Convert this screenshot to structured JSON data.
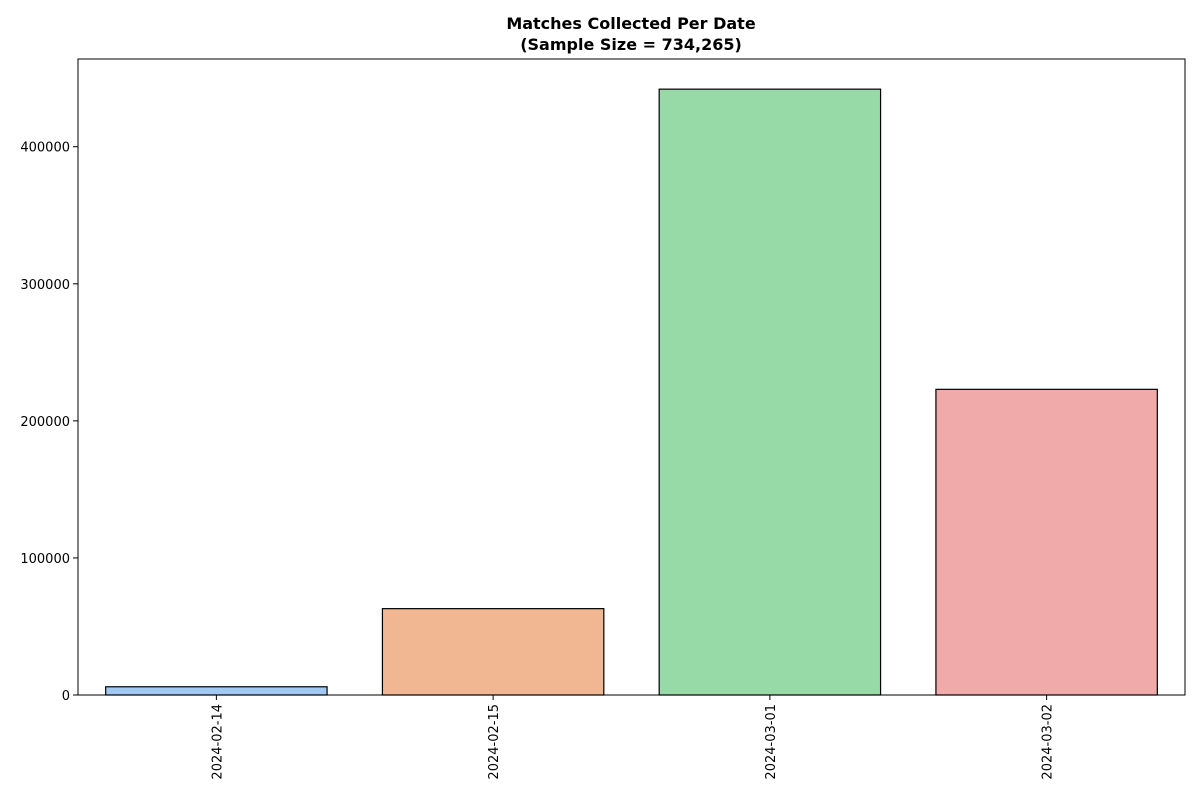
{
  "chart_data": {
    "type": "bar",
    "title": "Matches Collected Per Date",
    "subtitle": "(Sample Size = 734,265)",
    "xlabel": "",
    "ylabel": "",
    "categories": [
      "2024-02-14",
      "2024-02-15",
      "2024-03-01",
      "2024-03-02"
    ],
    "values": [
      6000,
      63000,
      442000,
      223000
    ],
    "colors": [
      "#a1c9f4",
      "#f1b792",
      "#98d9a8",
      "#f1aaaa"
    ],
    "ylim": [
      0,
      464000
    ],
    "yticks": [
      0,
      100000,
      200000,
      300000,
      400000
    ],
    "ytick_labels": [
      "0",
      "100000",
      "200000",
      "300000",
      "400000"
    ],
    "grid": false,
    "x_tick_rotation": "vertical"
  }
}
